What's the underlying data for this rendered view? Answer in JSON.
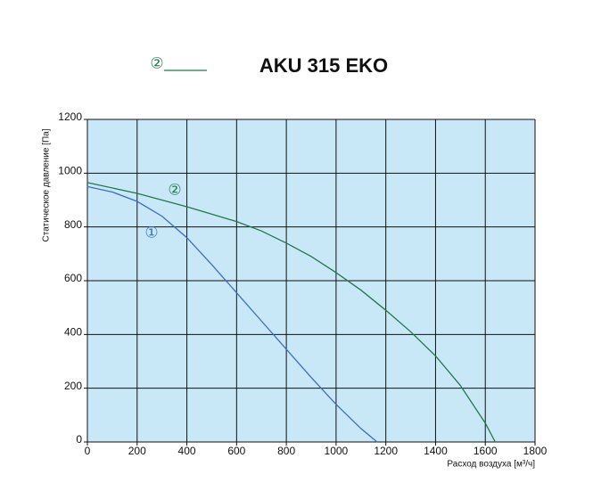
{
  "chart_data": {
    "type": "line",
    "title": "AKU 315 EKO",
    "x_label": "Расход воздуха [м³/ч]",
    "y_label": "Статическое давление [Па]",
    "xlim": [
      0,
      1800
    ],
    "xticks": [
      0,
      200,
      400,
      600,
      800,
      1000,
      1200,
      1400,
      1600,
      1800
    ],
    "ylim": [
      0,
      1200
    ],
    "yticks": [
      0,
      200,
      400,
      600,
      800,
      1000,
      1200
    ],
    "grid": true,
    "background": "#c9e8f7",
    "series": [
      {
        "name": "①",
        "color": "#3a6ec6",
        "in_legend": false,
        "x": [
          0,
          100,
          200,
          300,
          400,
          500,
          600,
          700,
          800,
          900,
          1000,
          1100,
          1165
        ],
        "values": [
          950,
          930,
          895,
          840,
          760,
          660,
          555,
          450,
          345,
          240,
          140,
          50,
          0
        ]
      },
      {
        "name": "②",
        "color": "#1f7a48",
        "in_legend": true,
        "x": [
          0,
          200,
          400,
          600,
          700,
          800,
          900,
          1000,
          1100,
          1200,
          1300,
          1400,
          1500,
          1600,
          1640
        ],
        "values": [
          965,
          925,
          875,
          820,
          785,
          740,
          690,
          630,
          565,
          490,
          410,
          320,
          210,
          70,
          0
        ]
      }
    ]
  }
}
